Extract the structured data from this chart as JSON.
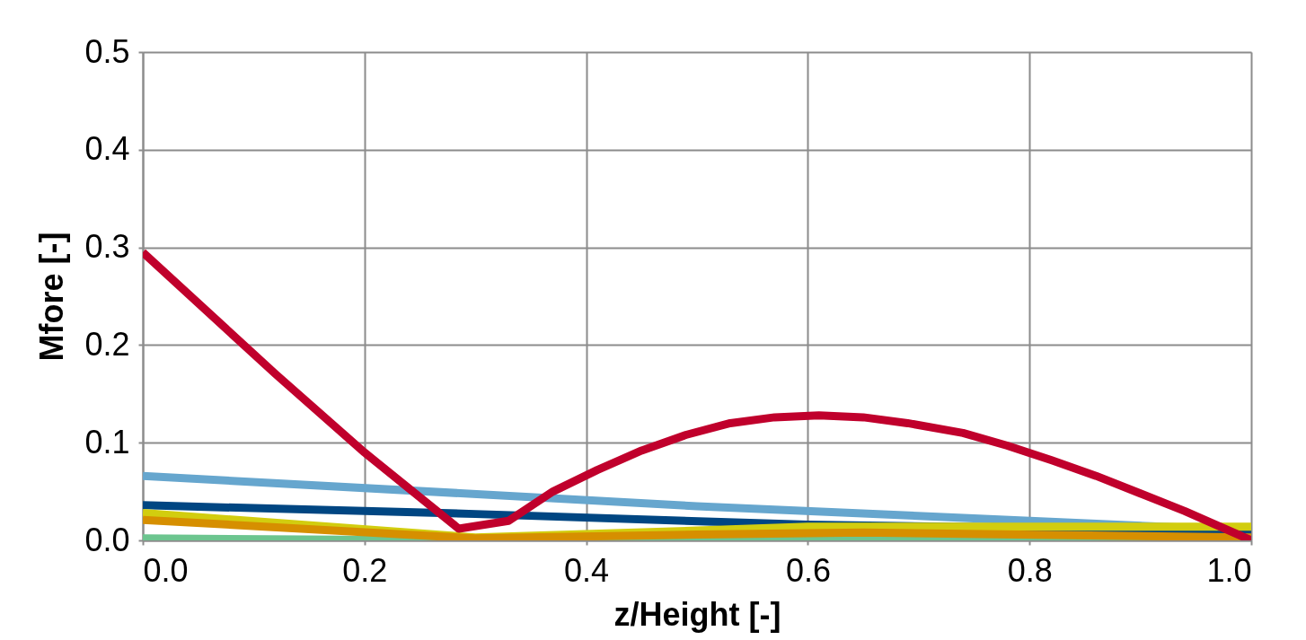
{
  "chart_data": {
    "type": "line",
    "xlabel": "z/Height [-]",
    "ylabel": "Mfore [-]",
    "xlim": [
      0,
      1
    ],
    "xticks": [
      {
        "value": 0,
        "label": "0.0"
      },
      0.2,
      0.4,
      0.6,
      0.8,
      {
        "value": 1,
        "label": "1.0"
      }
    ],
    "ylim": [
      0,
      0.5
    ],
    "yticks": [
      {
        "value": 0,
        "label": "0.0"
      },
      0.1,
      0.2,
      0.3,
      0.4,
      0.5
    ],
    "grid": true,
    "marker": "none",
    "line_style": "solid",
    "series": [
      {
        "color": "#6cc58f",
        "x": [
          0,
          0.3,
          0.6,
          1
        ],
        "values": [
          0.002,
          0.0,
          0.002,
          0.001
        ]
      },
      {
        "color": "#66a6ce",
        "x": [
          0,
          0.5,
          1
        ],
        "values": [
          0.066,
          0.035,
          0.01
        ]
      },
      {
        "color": "#004682",
        "x": [
          0,
          0.3,
          0.6,
          1
        ],
        "values": [
          0.036,
          0.027,
          0.016,
          0.01
        ]
      },
      {
        "color": "#d2cd0f",
        "x": [
          0,
          0.3,
          0.5,
          0.6,
          1
        ],
        "values": [
          0.028,
          0.003,
          0.01,
          0.014,
          0.014
        ]
      },
      {
        "color": "#d68f00",
        "x": [
          0,
          0.3,
          0.5,
          0.65,
          1
        ],
        "values": [
          0.021,
          0.002,
          0.006,
          0.008,
          0.003
        ]
      },
      {
        "color": "#c0002c",
        "x": [
          0,
          0.12,
          0.2,
          0.285,
          0.33,
          0.37,
          0.41,
          0.45,
          0.49,
          0.53,
          0.57,
          0.61,
          0.65,
          0.69,
          0.74,
          0.78,
          0.82,
          0.86,
          0.9,
          0.94,
          1.0
        ],
        "values": [
          0.295,
          0.17,
          0.09,
          0.012,
          0.02,
          0.05,
          0.072,
          0.092,
          0.108,
          0.12,
          0.126,
          0.128,
          0.126,
          0.12,
          0.11,
          0.097,
          0.082,
          0.066,
          0.048,
          0.03,
          0.0
        ]
      }
    ]
  }
}
